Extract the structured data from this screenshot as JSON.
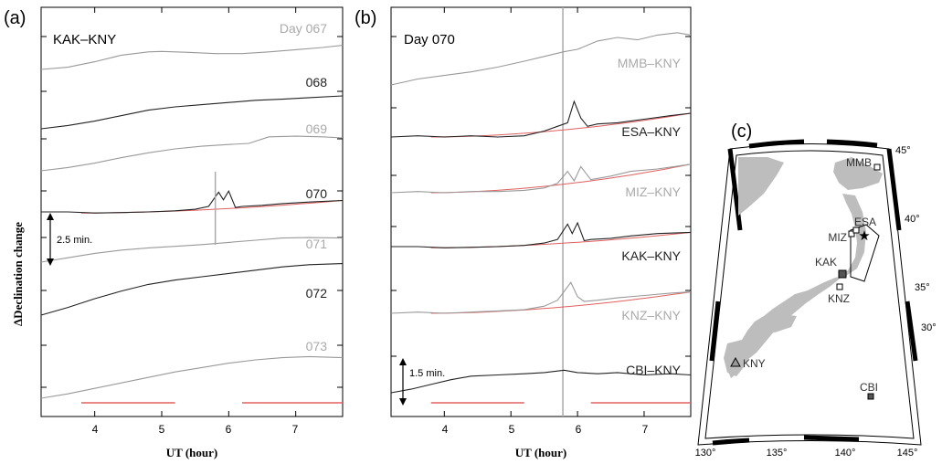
{
  "panels": {
    "a": {
      "label": "(a)",
      "pair_title": "KAK–KNY",
      "ylabel": "ΔDeclination change",
      "xlabel": "UT (hour)",
      "xticks": [
        "4",
        "5",
        "6",
        "7"
      ],
      "scale_bar": "2.5 min.",
      "days": [
        "Day 067",
        "068",
        "069",
        "070",
        "071",
        "072",
        "073"
      ]
    },
    "b": {
      "label": "(b)",
      "day_title": "Day 070",
      "xlabel": "UT (hour)",
      "xticks": [
        "4",
        "5",
        "6",
        "7"
      ],
      "scale_bar": "1.5 min.",
      "pairs": [
        "MMB–KNY",
        "ESA–KNY",
        "MIZ–KNY",
        "KAK–KNY",
        "KNZ–KNY",
        "CBI–KNY"
      ]
    },
    "c": {
      "label": "(c)",
      "lat_labels": [
        "45°",
        "40°",
        "35°",
        "30°"
      ],
      "lon_labels": [
        "130°",
        "135°",
        "140°",
        "145°"
      ],
      "stations": [
        "MMB",
        "ESA",
        "MIZ",
        "KAK",
        "KNZ",
        "KNY",
        "CBI"
      ]
    }
  },
  "chart_data": [
    {
      "type": "line",
      "panel": "a",
      "title": "KAK–KNY",
      "xlabel": "UT (hour)",
      "ylabel": "ΔDeclination change",
      "xlim": [
        3.2,
        7.7
      ],
      "scale_bar_minutes": 2.5,
      "event_marker_x": 5.8,
      "fit_windows": [
        [
          3.8,
          5.2
        ],
        [
          6.2,
          7.7
        ]
      ],
      "series": [
        {
          "name": "Day 067",
          "color": "#999999",
          "x": [
            3.2,
            3.6,
            4.0,
            4.4,
            4.8,
            5.0,
            5.4,
            5.8,
            6.2,
            6.6,
            7.0,
            7.4,
            7.7
          ],
          "y": [
            0.0,
            0.1,
            0.35,
            0.65,
            0.8,
            0.82,
            0.78,
            0.72,
            0.72,
            0.8,
            0.9,
            1.0,
            1.1
          ]
        },
        {
          "name": "068",
          "color": "#222222",
          "x": [
            3.2,
            3.6,
            4.0,
            4.4,
            4.8,
            5.2,
            5.6,
            6.0,
            6.4,
            6.8,
            7.2,
            7.7
          ],
          "y": [
            0.0,
            0.15,
            0.35,
            0.6,
            0.85,
            1.0,
            1.1,
            1.2,
            1.3,
            1.35,
            1.42,
            1.5
          ]
        },
        {
          "name": "069",
          "color": "#999999",
          "x": [
            3.2,
            3.6,
            4.0,
            4.4,
            4.8,
            5.2,
            5.6,
            6.0,
            6.3,
            6.6,
            7.0,
            7.4,
            7.7
          ],
          "y": [
            0.0,
            0.15,
            0.35,
            0.6,
            0.82,
            1.0,
            1.12,
            1.2,
            1.25,
            1.55,
            1.58,
            1.55,
            1.5
          ]
        },
        {
          "name": "070",
          "color": "#222222",
          "x": [
            3.2,
            3.6,
            4.0,
            4.4,
            4.8,
            5.2,
            5.5,
            5.7,
            5.85,
            5.92,
            6.0,
            6.1,
            6.2,
            6.5,
            6.8,
            7.2,
            7.7
          ],
          "y": [
            0.0,
            0.0,
            -0.05,
            -0.03,
            0.0,
            0.05,
            0.12,
            0.25,
            0.9,
            0.55,
            0.95,
            0.2,
            0.25,
            0.3,
            0.38,
            0.45,
            0.52
          ]
        },
        {
          "name": "071",
          "color": "#999999",
          "x": [
            3.2,
            3.6,
            4.0,
            4.4,
            4.8,
            5.2,
            5.6,
            6.0,
            6.4,
            6.8,
            7.2,
            7.7
          ],
          "y": [
            0.0,
            0.2,
            0.4,
            0.55,
            0.65,
            0.72,
            0.8,
            0.9,
            1.0,
            1.1,
            1.12,
            1.1
          ]
        },
        {
          "name": "072",
          "color": "#222222",
          "x": [
            3.2,
            3.6,
            4.0,
            4.4,
            4.8,
            5.2,
            5.6,
            6.0,
            6.4,
            6.8,
            7.2,
            7.7
          ],
          "y": [
            0.0,
            0.35,
            0.75,
            1.1,
            1.4,
            1.6,
            1.75,
            1.9,
            2.05,
            2.2,
            2.3,
            2.35
          ]
        },
        {
          "name": "073",
          "color": "#999999",
          "x": [
            3.2,
            3.6,
            4.0,
            4.4,
            4.8,
            5.2,
            5.6,
            6.0,
            6.4,
            6.8,
            7.2,
            7.7
          ],
          "y": [
            0.0,
            0.2,
            0.45,
            0.7,
            0.95,
            1.2,
            1.4,
            1.6,
            1.75,
            1.85,
            1.9,
            1.85
          ]
        }
      ]
    },
    {
      "type": "line",
      "panel": "b",
      "title": "Day 070",
      "xlabel": "UT (hour)",
      "xlim": [
        3.2,
        7.7
      ],
      "scale_bar_minutes": 1.5,
      "event_marker_x": 5.78,
      "fit_windows": [
        [
          3.8,
          5.2
        ],
        [
          6.2,
          7.7
        ]
      ],
      "series": [
        {
          "name": "MMB–KNY",
          "color": "#999999",
          "x": [
            3.2,
            3.6,
            4.0,
            4.4,
            4.8,
            5.2,
            5.5,
            5.8,
            6.0,
            6.3,
            6.6,
            6.9,
            7.2,
            7.5,
            7.7
          ],
          "y": [
            0.0,
            0.25,
            0.4,
            0.55,
            0.75,
            1.0,
            1.2,
            1.4,
            1.5,
            1.85,
            2.0,
            1.9,
            2.1,
            2.2,
            2.1
          ]
        },
        {
          "name": "ESA–KNY",
          "color": "#222222",
          "x": [
            3.2,
            3.6,
            4.0,
            4.4,
            4.8,
            5.2,
            5.5,
            5.7,
            5.85,
            5.95,
            6.05,
            6.15,
            6.3,
            6.6,
            7.0,
            7.4,
            7.7
          ],
          "y": [
            0.0,
            0.05,
            0.0,
            0.05,
            0.0,
            0.05,
            0.25,
            0.45,
            0.6,
            1.5,
            0.8,
            0.45,
            0.55,
            0.6,
            0.75,
            0.9,
            1.0
          ]
        },
        {
          "name": "MIZ–KNY",
          "color": "#999999",
          "x": [
            3.2,
            3.6,
            4.0,
            4.4,
            4.8,
            5.2,
            5.5,
            5.7,
            5.85,
            5.95,
            6.05,
            6.2,
            6.5,
            6.8,
            7.2,
            7.7
          ],
          "y": [
            0.0,
            0.05,
            0.0,
            0.05,
            0.05,
            0.1,
            0.2,
            0.4,
            0.9,
            0.5,
            1.1,
            0.55,
            0.7,
            0.9,
            1.0,
            1.2
          ]
        },
        {
          "name": "KAK–KNY",
          "color": "#222222",
          "x": [
            3.2,
            3.6,
            4.0,
            4.4,
            4.8,
            5.2,
            5.5,
            5.7,
            5.85,
            5.92,
            6.0,
            6.1,
            6.2,
            6.5,
            6.8,
            7.2,
            7.7
          ],
          "y": [
            0.0,
            0.0,
            -0.05,
            -0.03,
            0.0,
            0.05,
            0.15,
            0.3,
            0.95,
            0.55,
            1.0,
            0.25,
            0.3,
            0.35,
            0.45,
            0.55,
            0.6
          ]
        },
        {
          "name": "KNZ–KNY",
          "color": "#999999",
          "x": [
            3.2,
            3.6,
            4.0,
            4.4,
            4.8,
            5.2,
            5.5,
            5.7,
            5.9,
            6.0,
            6.1,
            6.3,
            6.6,
            7.0,
            7.4,
            7.7
          ],
          "y": [
            0.0,
            0.05,
            0.0,
            0.05,
            0.1,
            0.15,
            0.3,
            0.55,
            1.3,
            0.7,
            0.5,
            0.55,
            0.65,
            0.75,
            0.85,
            0.9
          ]
        },
        {
          "name": "CBI–KNY",
          "color": "#222222",
          "x": [
            3.2,
            3.5,
            3.8,
            4.1,
            4.4,
            4.8,
            5.2,
            5.5,
            5.8,
            6.0,
            6.3,
            6.6,
            7.0,
            7.4,
            7.7
          ],
          "y": [
            0.0,
            0.15,
            0.35,
            0.55,
            0.7,
            0.75,
            0.8,
            0.85,
            0.95,
            0.85,
            0.8,
            0.85,
            0.75,
            0.8,
            0.75
          ]
        }
      ]
    }
  ]
}
